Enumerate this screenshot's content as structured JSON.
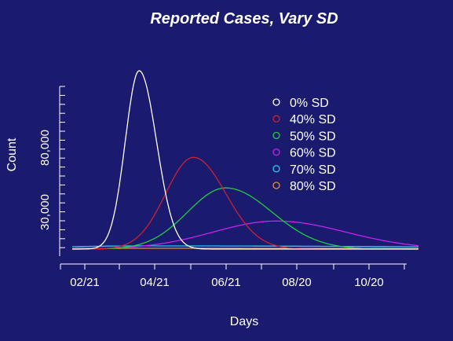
{
  "chart_data": {
    "type": "line",
    "title": "Reported Cases, Vary SD",
    "xlabel": "Days",
    "ylabel": "Count",
    "x_ticks": [
      "02/21",
      "04/21",
      "06/21",
      "08/20",
      "10/20"
    ],
    "y_ticks": [
      30000,
      80000
    ],
    "y_tick_labels": [
      "30,000",
      "80,000"
    ],
    "ylim": [
      0,
      140000
    ],
    "legend_position": "top-right",
    "series": [
      {
        "name": "0% SD",
        "color": "#ffffff",
        "peak_day": 58,
        "peak": 140000,
        "sd_left": 12,
        "sd_right": 15
      },
      {
        "name": "40% SD",
        "color": "#cc2233",
        "peak_day": 105,
        "peak": 72000,
        "sd_left": 24,
        "sd_right": 28
      },
      {
        "name": "50% SD",
        "color": "#22cc44",
        "peak_day": 133,
        "peak": 48000,
        "sd_left": 33,
        "sd_right": 40
      },
      {
        "name": "60% SD",
        "color": "#cc22ee",
        "peak_day": 177,
        "peak": 22000,
        "sd_left": 55,
        "sd_right": 60
      },
      {
        "name": "70% SD",
        "color": "#22ccee",
        "peak_day": 60,
        "peak": 2500,
        "sd_left": 80,
        "sd_right": 300
      },
      {
        "name": "80% SD",
        "color": "#e8902a",
        "peak_day": 60,
        "peak": 600,
        "sd_left": 80,
        "sd_right": 400
      }
    ]
  }
}
